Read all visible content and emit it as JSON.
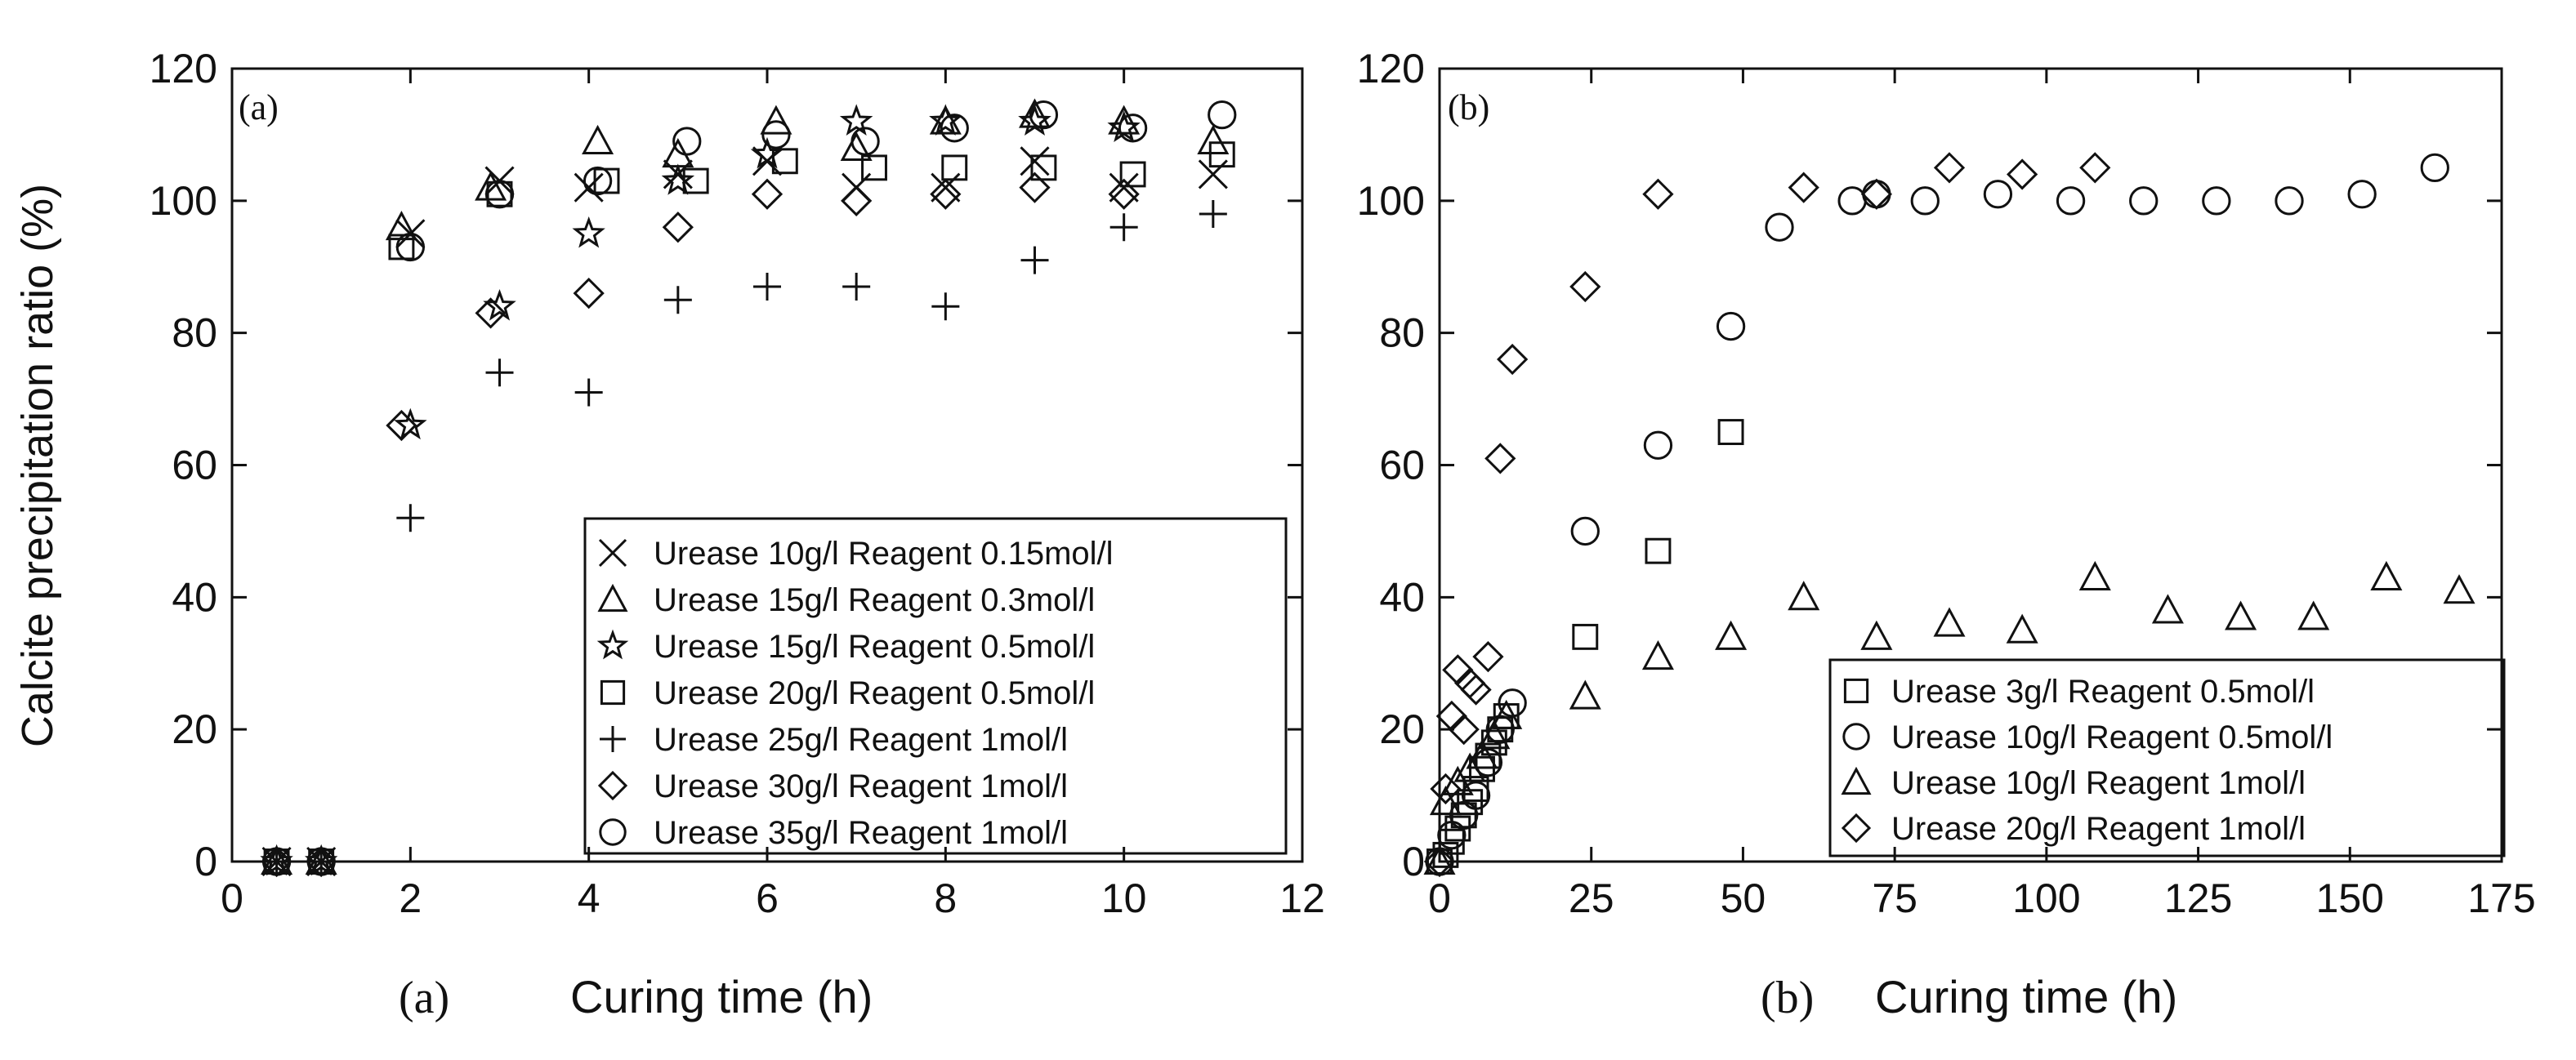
{
  "chart_data": [
    {
      "type": "scatter",
      "panel_tag": "(a)",
      "caption_tag": "(a)",
      "xlabel": "Curing time (h)",
      "ylabel": "Calcite precipitation ratio (%)",
      "xlim": [
        0,
        12
      ],
      "ylim": [
        0,
        120
      ],
      "xticks": [
        "0",
        "2",
        "4",
        "6",
        "8",
        "10",
        "12"
      ],
      "yticks": [
        "0",
        "20",
        "40",
        "60",
        "80",
        "100",
        "120"
      ],
      "grid": false,
      "legend_position": "bottom-right",
      "series": [
        {
          "name": "Urease 10g/l Reagent 0.15mol/l",
          "marker": "x",
          "x": [
            0.5,
            1,
            2,
            3,
            4,
            5,
            6,
            7,
            8,
            9,
            10,
            11
          ],
          "y": [
            0,
            0,
            95,
            103,
            102,
            104,
            106,
            102,
            102,
            106,
            102,
            104
          ]
        },
        {
          "name": "Urease 15g/l Reagent 0.3mol/l",
          "marker": "triangle",
          "x": [
            0.5,
            1,
            1.9,
            2.9,
            4.1,
            5,
            6.1,
            7,
            8,
            9,
            10,
            11
          ],
          "y": [
            0,
            0,
            96,
            102,
            109,
            107,
            112,
            108,
            112,
            113,
            112,
            109
          ]
        },
        {
          "name": "Urease 15g/l Reagent 0.5mol/l",
          "marker": "star",
          "x": [
            0.5,
            1,
            2,
            3,
            4,
            5,
            6,
            7,
            8,
            9,
            10
          ],
          "y": [
            0,
            0,
            66,
            84,
            95,
            103,
            107,
            112,
            112,
            112,
            111
          ]
        },
        {
          "name": "Urease 20g/l Reagent 0.5mol/l",
          "marker": "square",
          "x": [
            0.5,
            1,
            1.9,
            3,
            4.2,
            5.2,
            6.2,
            7.2,
            8.1,
            9.1,
            10.1,
            11.1
          ],
          "y": [
            0,
            0,
            93,
            101,
            103,
            103,
            106,
            105,
            105,
            105,
            104,
            107
          ]
        },
        {
          "name": "Urease 25g/l Reagent 1mol/l",
          "marker": "plus",
          "x": [
            0.5,
            1,
            2,
            3,
            4,
            5,
            6,
            7,
            8,
            9,
            10,
            11
          ],
          "y": [
            0,
            0,
            52,
            74,
            71,
            85,
            87,
            87,
            84,
            91,
            96,
            98
          ]
        },
        {
          "name": "Urease 30g/l Reagent 1mol/l",
          "marker": "diamond",
          "x": [
            0.5,
            1,
            1.9,
            2.9,
            4,
            5,
            6,
            7,
            8,
            9,
            10
          ],
          "y": [
            0,
            0,
            66,
            83,
            86,
            96,
            101,
            100,
            101,
            102,
            101
          ]
        },
        {
          "name": "Urease 35g/l Reagent 1mol/l",
          "marker": "circle",
          "x": [
            0.5,
            1,
            2,
            3,
            4.1,
            5.1,
            6.1,
            7.1,
            8.1,
            9.1,
            10.1,
            11.1
          ],
          "y": [
            0,
            0,
            93,
            101,
            103,
            109,
            110,
            109,
            111,
            113,
            111,
            113
          ]
        }
      ]
    },
    {
      "type": "scatter",
      "panel_tag": "(b)",
      "caption_tag": "(b)",
      "xlabel": "Curing time (h)",
      "ylabel": "",
      "xlim": [
        0,
        175
      ],
      "ylim": [
        0,
        120
      ],
      "xticks": [
        "0",
        "25",
        "50",
        "75",
        "100",
        "125",
        "150",
        "175"
      ],
      "yticks": [
        "0",
        "20",
        "40",
        "60",
        "80",
        "100",
        "120"
      ],
      "grid": false,
      "legend_position": "bottom-right",
      "series": [
        {
          "name": "Urease 3g/l Reagent 0.5mol/l",
          "marker": "square",
          "x": [
            0,
            1,
            2,
            3,
            4,
            5,
            6,
            7,
            8,
            9,
            10,
            11,
            24,
            36,
            48
          ],
          "y": [
            0,
            1,
            3,
            5,
            7,
            9,
            11,
            14,
            16,
            18,
            20,
            22,
            34,
            47,
            65
          ]
        },
        {
          "name": "Urease 10g/l Reagent 0.5mol/l",
          "marker": "circle",
          "x": [
            0,
            2,
            4,
            6,
            8,
            10,
            12,
            24,
            36,
            48,
            56,
            68,
            72,
            80,
            92,
            104,
            116,
            128,
            140,
            152,
            164
          ],
          "y": [
            0,
            4,
            7,
            10,
            15,
            20,
            24,
            50,
            63,
            81,
            96,
            100,
            101,
            100,
            101,
            100,
            100,
            100,
            100,
            101,
            105
          ]
        },
        {
          "name": "Urease 10g/l Reagent 1mol/l",
          "marker": "triangle",
          "x": [
            0,
            1,
            3,
            5,
            7,
            9,
            11,
            24,
            36,
            48,
            60,
            72,
            84,
            96,
            108,
            120,
            132,
            144,
            156,
            168
          ],
          "y": [
            0,
            9,
            12,
            14,
            16,
            19,
            22,
            25,
            31,
            34,
            40,
            34,
            36,
            35,
            43,
            38,
            37,
            37,
            43,
            41
          ]
        },
        {
          "name": "Urease 20g/l Reagent 1mol/l",
          "marker": "diamond",
          "x": [
            0,
            1,
            2,
            3,
            4,
            5,
            6,
            8,
            10,
            12,
            24,
            36,
            60,
            72,
            84,
            96,
            108
          ],
          "y": [
            0,
            11,
            22,
            29,
            20,
            27,
            26,
            31,
            61,
            76,
            87,
            101,
            102,
            101,
            105,
            104,
            105
          ]
        }
      ]
    }
  ]
}
